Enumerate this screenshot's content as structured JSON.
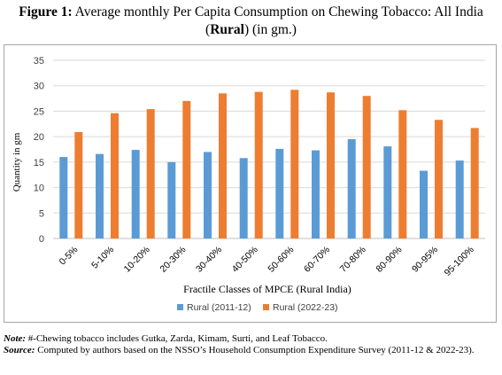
{
  "figure": {
    "label": "Figure 1:",
    "title_part1": "Average monthly Per Capita Consumption on Chewing Tobacco: All India",
    "title_open": "(",
    "title_bold": "Rural",
    "title_part2": ") (in gm.)"
  },
  "chart_data": {
    "type": "bar",
    "categories": [
      "0-5%",
      "5-10%",
      "10-20%",
      "20-30%",
      "30-40%",
      "40-50%",
      "50-60%",
      "60-70%",
      "70-80%",
      "80-90%",
      "90-95%",
      "95-100%"
    ],
    "series": [
      {
        "name": "Rural (2011-12)",
        "color": "#5b9bd5",
        "values": [
          16.0,
          16.6,
          17.4,
          15.0,
          17.0,
          15.8,
          17.6,
          17.3,
          19.5,
          18.1,
          13.3,
          15.3
        ]
      },
      {
        "name": "Rural (2022-23)",
        "color": "#ed7d31",
        "values": [
          20.9,
          24.6,
          25.4,
          27.0,
          28.5,
          28.8,
          29.2,
          28.7,
          28.0,
          25.2,
          23.3,
          21.7
        ]
      }
    ],
    "ylim": [
      0,
      35
    ],
    "yticks": [
      0,
      5,
      10,
      15,
      20,
      25,
      30,
      35
    ],
    "xlabel": "Fractile Classes of MPCE (Rural India)",
    "ylabel": "Quantity in gm",
    "grid": true,
    "legend_position": "bottom"
  },
  "notes": {
    "note_label": "Note:",
    "note_text": " #-Chewing tobacco includes Gutka, Zarda, Kimam, Surti, and Leaf Tobacco.",
    "source_label": "Source:",
    "source_text": " Computed by authors based on the NSSO’s Household Consumption Expenditure Survey (2011-12 & 2022-23)."
  }
}
